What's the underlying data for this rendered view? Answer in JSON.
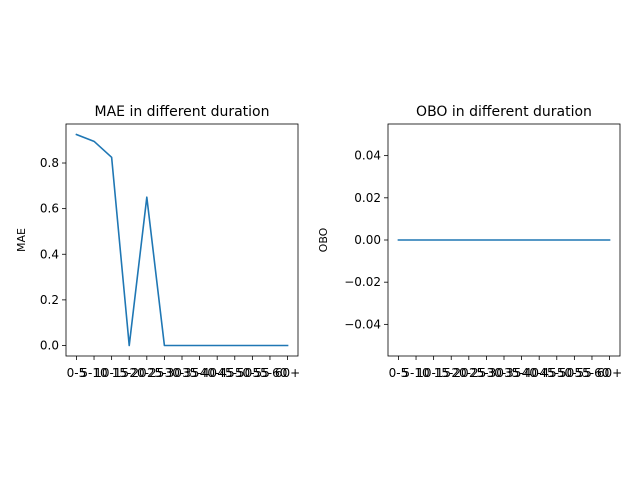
{
  "chart_data": [
    {
      "type": "line",
      "title": "MAE in different duration",
      "xlabel": "",
      "ylabel": "MAE",
      "categories": [
        "0-5",
        "5-10",
        "10-15",
        "15-20",
        "20-25",
        "25-30",
        "30-35",
        "35-40",
        "40-45",
        "45-50",
        "50-55",
        "55-60",
        "60+"
      ],
      "series": [
        {
          "values": [
            0.925,
            0.895,
            0.825,
            0.0,
            0.65,
            0.0,
            0.0,
            0.0,
            0.0,
            0.0,
            0.0,
            0.0,
            0.0
          ]
        }
      ],
      "ylim": [
        -0.046,
        0.971
      ],
      "yticks": [
        0.0,
        0.2,
        0.4,
        0.6,
        0.8
      ],
      "ytick_labels": [
        "0.0",
        "0.2",
        "0.4",
        "0.6",
        "0.8"
      ],
      "grid": false,
      "color": "#1f77b4"
    },
    {
      "type": "line",
      "title": "OBO in different duration",
      "xlabel": "",
      "ylabel": "OBO",
      "categories": [
        "0-5",
        "5-10",
        "10-15",
        "15-20",
        "20-25",
        "25-30",
        "30-35",
        "35-40",
        "40-45",
        "45-50",
        "50-55",
        "55-60",
        "60+"
      ],
      "series": [
        {
          "values": [
            0,
            0,
            0,
            0,
            0,
            0,
            0,
            0,
            0,
            0,
            0,
            0,
            0
          ]
        }
      ],
      "ylim": [
        -0.055,
        0.055
      ],
      "yticks": [
        -0.04,
        -0.02,
        0.0,
        0.02,
        0.04
      ],
      "ytick_labels": [
        "−0.04",
        "−0.02",
        "0.00",
        "0.02",
        "0.04"
      ],
      "grid": false,
      "color": "#1f77b4"
    }
  ]
}
